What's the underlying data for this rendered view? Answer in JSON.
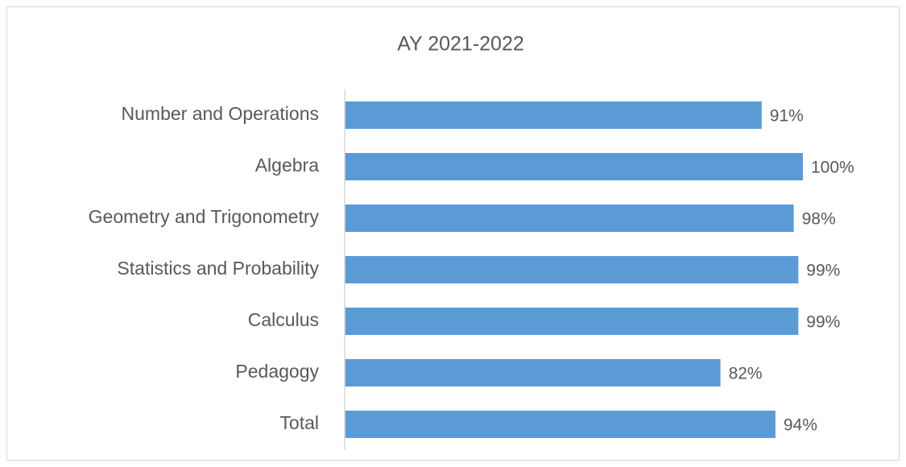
{
  "chart_data": {
    "type": "bar",
    "orientation": "horizontal",
    "title": "AY 2021-2022",
    "categories": [
      "Number and Operations",
      "Algebra",
      "Geometry and Trigonometry",
      "Statistics and Probability",
      "Calculus",
      "Pedagogy",
      "Total"
    ],
    "values": [
      91,
      100,
      98,
      99,
      99,
      82,
      94
    ],
    "value_labels": [
      "91%",
      "100%",
      "98%",
      "99%",
      "99%",
      "82%",
      "94%"
    ],
    "color": "#5b9bd5",
    "xlim": [
      0,
      100
    ]
  }
}
